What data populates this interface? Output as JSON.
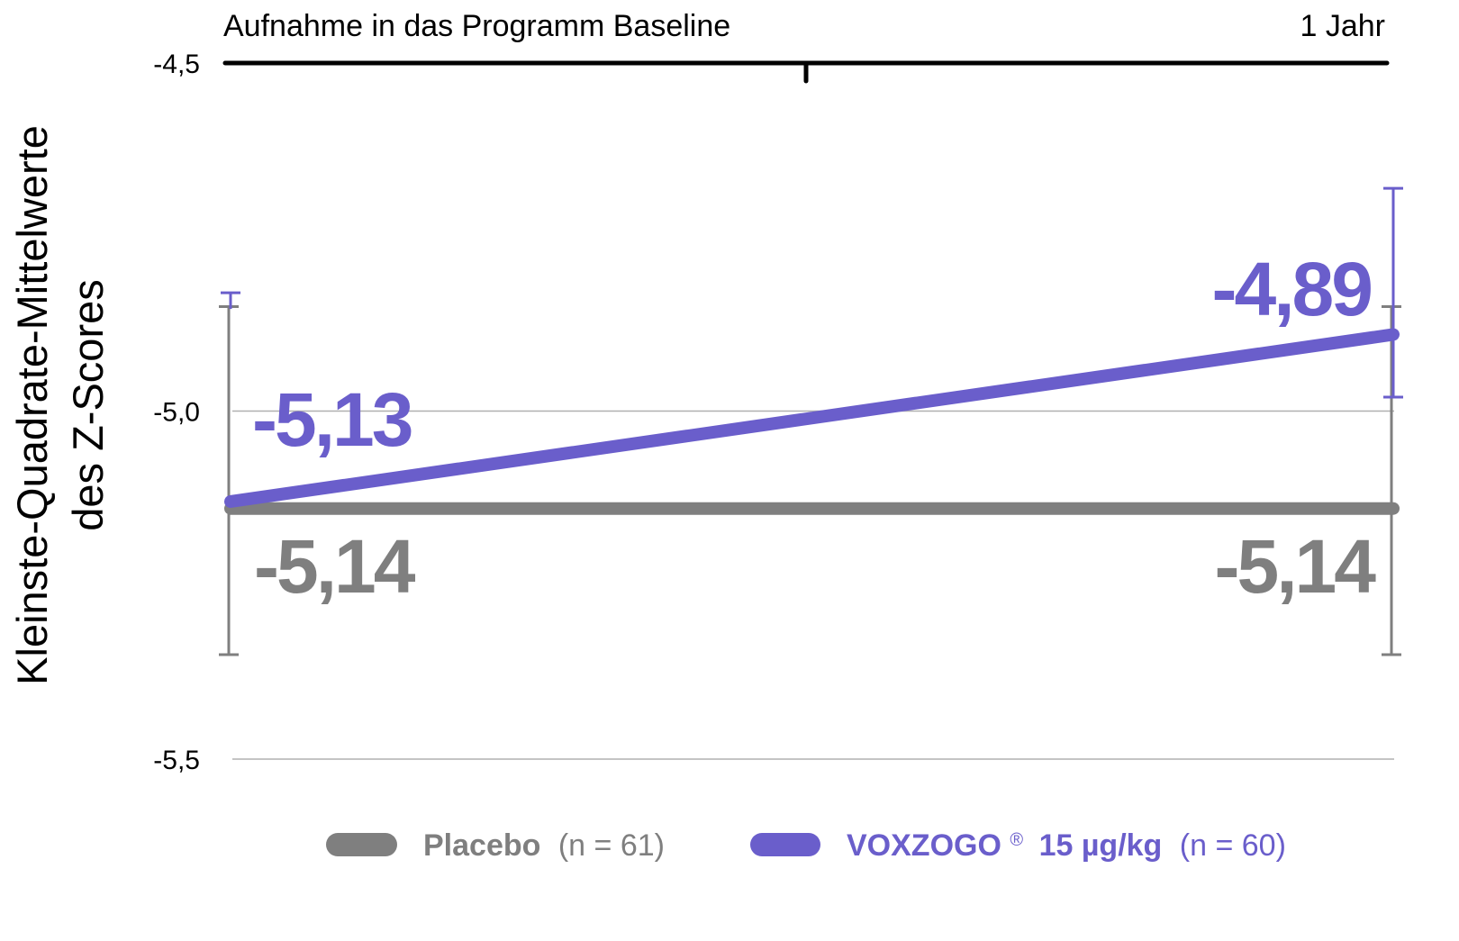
{
  "chart_data": {
    "type": "line",
    "x": [
      "Baseline",
      "1 Jahr"
    ],
    "top_axis": {
      "left_label": "Aufnahme in das Programm Baseline",
      "right_label": "1 Jahr"
    },
    "ylabel": [
      "Kleinste-Quadrate-Mittelwerte",
      "des Z-Scores"
    ],
    "ylim": [
      -5.5,
      -4.5
    ],
    "ytick_labels": [
      "-4,5",
      "-5,0",
      "-5,5"
    ],
    "yticks": [
      -4.5,
      -5.0,
      -5.5
    ],
    "grid": true,
    "series": [
      {
        "name": "Placebo",
        "n_label": "(n = 61)",
        "color": "#7f7f7f",
        "values": [
          -5.14,
          -5.14
        ],
        "value_labels": [
          "-5,14",
          "-5,14"
        ],
        "error_bars": [
          [
            -5.35,
            -4.85
          ],
          [
            -5.35,
            -4.85
          ]
        ]
      },
      {
        "name": "VOXZOGO",
        "name_mark": "®",
        "dose_label": "15 µg/kg",
        "n_label": "(n = 60)",
        "color": "#6a5ecb",
        "values": [
          -5.13,
          -4.89
        ],
        "value_labels": [
          "-5,13",
          "-4,89"
        ],
        "error_bars": [
          [
            null,
            -4.83
          ],
          [
            -4.98,
            -4.68
          ]
        ]
      }
    ],
    "legend_position": "bottom"
  }
}
